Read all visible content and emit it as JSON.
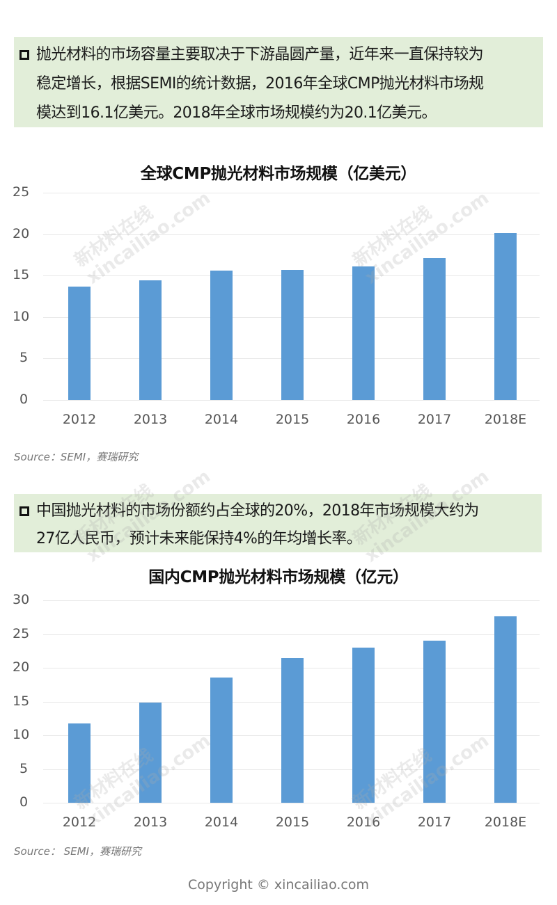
{
  "note1": {
    "lines": [
      "抛光材料的市场容量主要取决于下游晶圆产量，近年来一直保持较为",
      "稳定增长，根据SEMI的统计数据，2016年全球CMP抛光材料市场规",
      "模达到16.1亿美元。2018年全球市场规模约为20.1亿美元。"
    ]
  },
  "note2": {
    "lines": [
      "中国抛光材料的市场份额约占全球的20%，2018年市场规模大约为",
      "27亿人民币，预计未来能保持4%的年均增长率。"
    ]
  },
  "chart1_source": "Source：SEMI，赛瑞研究",
  "chart2_source": "Source：  SEMI，赛瑞研究",
  "watermark": {
    "cn": "新材料在线",
    "en": "xincailiao.com"
  },
  "copyright": "Copyright © xincailiao.com",
  "colors": {
    "bar": "#5b9bd5",
    "note_bg": "#e2eed9"
  },
  "chart_data": [
    {
      "type": "bar",
      "title": "全球CMP抛光材料市场规模（亿美元）",
      "categories": [
        "2012",
        "2013",
        "2014",
        "2015",
        "2016",
        "2017",
        "2018E"
      ],
      "values": [
        13.7,
        14.4,
        15.6,
        15.7,
        16.1,
        17.1,
        20.1
      ],
      "yticks": [
        "0",
        "5",
        "10",
        "15",
        "20",
        "25"
      ],
      "ylim": [
        0,
        25
      ],
      "xlabel": "",
      "ylabel": "",
      "grid": true,
      "legend": "none"
    },
    {
      "type": "bar",
      "title": "国内CMP抛光材料市场规模（亿元）",
      "categories": [
        "2012",
        "2013",
        "2014",
        "2015",
        "2016",
        "2017",
        "2018E"
      ],
      "values": [
        11.8,
        14.8,
        18.6,
        21.4,
        23.0,
        24.0,
        27.6
      ],
      "yticks": [
        "0",
        "5",
        "10",
        "15",
        "20",
        "25",
        "30"
      ],
      "ylim": [
        0,
        30
      ],
      "xlabel": "",
      "ylabel": "",
      "grid": true,
      "legend": "none"
    }
  ]
}
